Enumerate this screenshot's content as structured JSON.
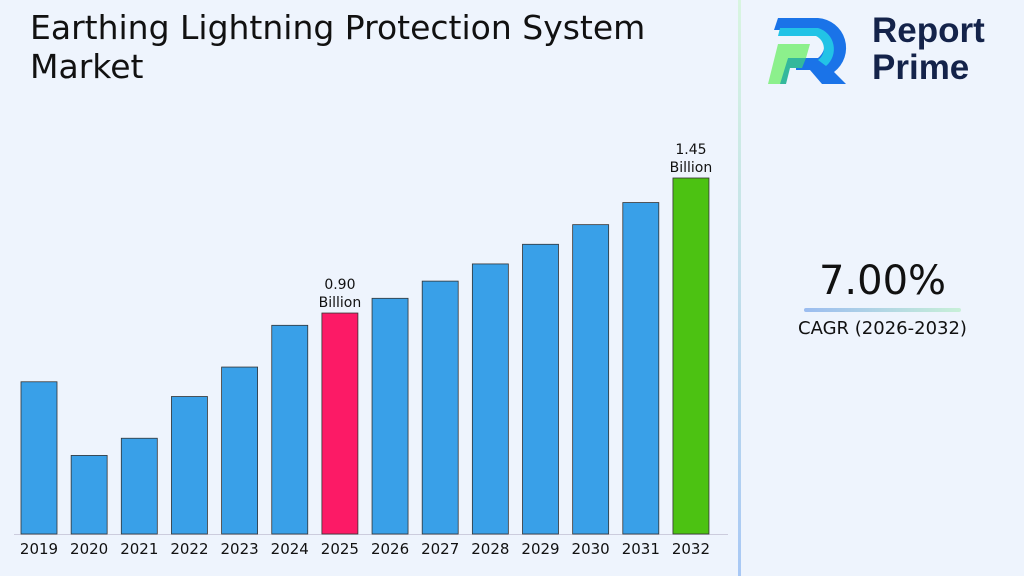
{
  "title": "Earthing Lightning Protection System Market",
  "brand": {
    "name_line1": "Report",
    "name_line2": "Prime"
  },
  "cagr": {
    "value": "7.00%",
    "label": "CAGR (2026-2032)"
  },
  "chart_data": {
    "type": "bar",
    "title": "Earthing Lightning Protection System Market",
    "categories": [
      "2019",
      "2020",
      "2021",
      "2022",
      "2023",
      "2024",
      "2025",
      "2026",
      "2027",
      "2028",
      "2029",
      "2030",
      "2031",
      "2032"
    ],
    "values": [
      0.62,
      0.32,
      0.39,
      0.56,
      0.68,
      0.85,
      0.9,
      0.96,
      1.03,
      1.1,
      1.18,
      1.26,
      1.35,
      1.45
    ],
    "unit": "Billion",
    "annotations": [
      {
        "index": 6,
        "line1": "0.90",
        "line2": "Billion"
      },
      {
        "index": 13,
        "line1": "1.45",
        "line2": "Billion"
      }
    ],
    "colors": {
      "default": "#39a0e8",
      "highlight_2025": "#fc1a66",
      "highlight_2032": "#4cc212"
    },
    "ylim": [
      0,
      1.45
    ],
    "grid": false
  }
}
